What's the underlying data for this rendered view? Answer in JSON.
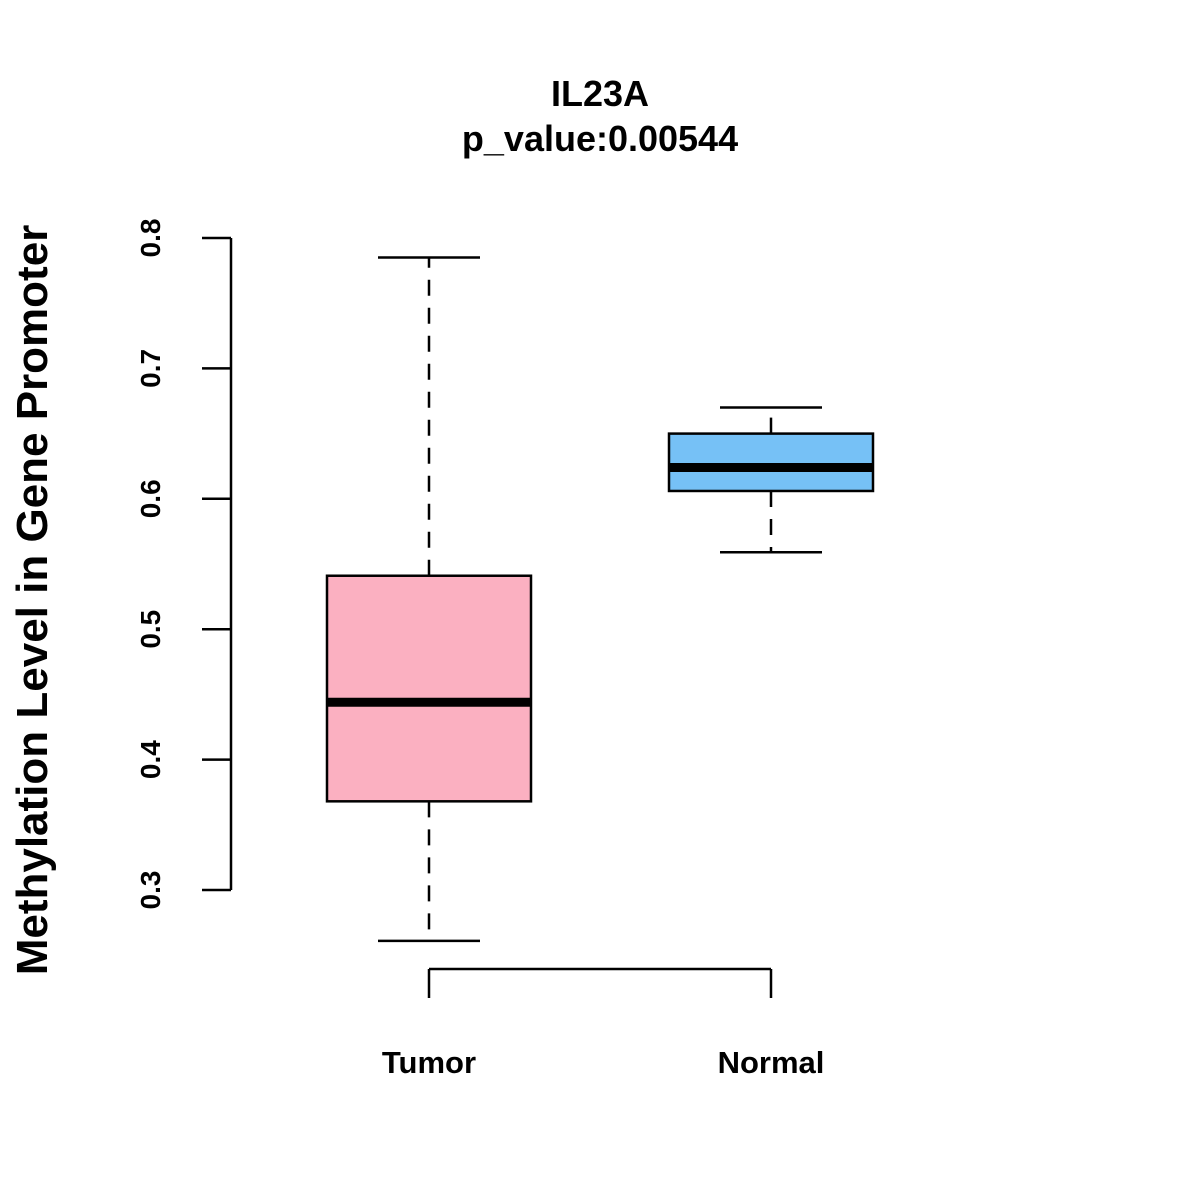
{
  "chart_data": {
    "type": "boxplot",
    "title": "IL23A",
    "subtitle": "p_value:0.00544",
    "xlabel": "",
    "ylabel": "Methylation Level in Gene Promoter",
    "ylim": [
      0.3,
      0.8
    ],
    "yticks": [
      0.3,
      0.4,
      0.5,
      0.6,
      0.7,
      0.8
    ],
    "ytick_labels": [
      "0.3",
      "0.4",
      "0.5",
      "0.6",
      "0.7",
      "0.8"
    ],
    "categories": [
      "Tumor",
      "Normal"
    ],
    "series": [
      {
        "name": "Tumor",
        "color": "#FBB0C1",
        "whisker_low": 0.261,
        "q1": 0.368,
        "median": 0.444,
        "q3": 0.541,
        "whisker_high": 0.785
      },
      {
        "name": "Normal",
        "color": "#76C1F6",
        "whisker_low": 0.559,
        "q1": 0.606,
        "median": 0.624,
        "q3": 0.65,
        "whisker_high": 0.67
      }
    ],
    "grid": false,
    "legend": "none"
  }
}
